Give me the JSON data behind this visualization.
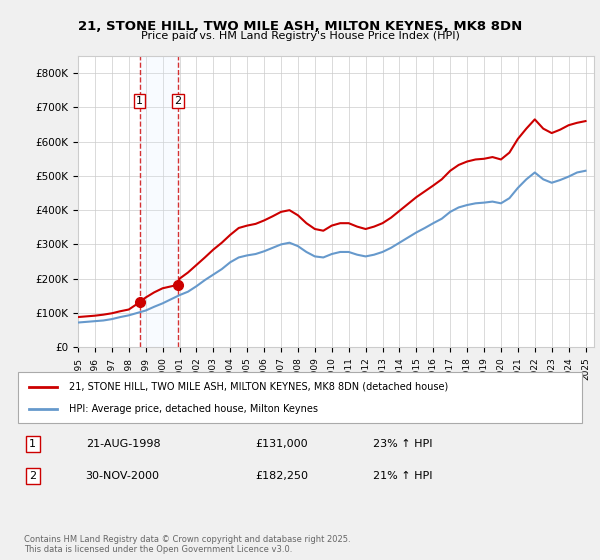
{
  "title": "21, STONE HILL, TWO MILE ASH, MILTON KEYNES, MK8 8DN",
  "subtitle": "Price paid vs. HM Land Registry's House Price Index (HPI)",
  "xlabel": "",
  "ylabel": "",
  "ylim": [
    0,
    850000
  ],
  "yticks": [
    0,
    100000,
    200000,
    300000,
    400000,
    500000,
    600000,
    700000,
    800000
  ],
  "ytick_labels": [
    "£0",
    "£100K",
    "£200K",
    "£300K",
    "£400K",
    "£500K",
    "£600K",
    "£700K",
    "£800K"
  ],
  "bg_color": "#f0f0f0",
  "plot_bg_color": "#ffffff",
  "red_line_color": "#cc0000",
  "blue_line_color": "#6699cc",
  "shade_color": "#ddeeff",
  "marker_color": "#cc0000",
  "legend_label_red": "21, STONE HILL, TWO MILE ASH, MILTON KEYNES, MK8 8DN (detached house)",
  "legend_label_blue": "HPI: Average price, detached house, Milton Keynes",
  "transaction1_label": "1",
  "transaction1_date": "21-AUG-1998",
  "transaction1_price": "£131,000",
  "transaction1_hpi": "23% ↑ HPI",
  "transaction1_year": 1998.64,
  "transaction1_value": 131000,
  "transaction2_label": "2",
  "transaction2_date": "30-NOV-2000",
  "transaction2_price": "£182,250",
  "transaction2_hpi": "21% ↑ HPI",
  "transaction2_year": 2000.92,
  "transaction2_value": 182250,
  "copyright_text": "Contains HM Land Registry data © Crown copyright and database right 2025.\nThis data is licensed under the Open Government Licence v3.0.",
  "hpi_years": [
    1995,
    1995.5,
    1996,
    1996.5,
    1997,
    1997.5,
    1998,
    1998.5,
    1999,
    1999.5,
    2000,
    2000.5,
    2001,
    2001.5,
    2002,
    2002.5,
    2003,
    2003.5,
    2004,
    2004.5,
    2005,
    2005.5,
    2006,
    2006.5,
    2007,
    2007.5,
    2008,
    2008.5,
    2009,
    2009.5,
    2010,
    2010.5,
    2011,
    2011.5,
    2012,
    2012.5,
    2013,
    2013.5,
    2014,
    2014.5,
    2015,
    2015.5,
    2016,
    2016.5,
    2017,
    2017.5,
    2018,
    2018.5,
    2019,
    2019.5,
    2020,
    2020.5,
    2021,
    2021.5,
    2022,
    2022.5,
    2023,
    2023.5,
    2024,
    2024.5,
    2025
  ],
  "hpi_values": [
    72000,
    74000,
    76000,
    78000,
    82000,
    88000,
    93000,
    100000,
    107000,
    118000,
    128000,
    140000,
    152000,
    162000,
    178000,
    196000,
    212000,
    228000,
    248000,
    262000,
    268000,
    272000,
    280000,
    290000,
    300000,
    305000,
    295000,
    278000,
    265000,
    262000,
    272000,
    278000,
    278000,
    270000,
    265000,
    270000,
    278000,
    290000,
    305000,
    320000,
    335000,
    348000,
    362000,
    375000,
    395000,
    408000,
    415000,
    420000,
    422000,
    425000,
    420000,
    435000,
    465000,
    490000,
    510000,
    490000,
    480000,
    488000,
    498000,
    510000,
    515000
  ],
  "red_years": [
    1995,
    1995.5,
    1996,
    1996.5,
    1997,
    1997.5,
    1998,
    1998.64,
    1999,
    1999.5,
    2000,
    2000.92,
    2001,
    2001.5,
    2002,
    2002.5,
    2003,
    2003.5,
    2004,
    2004.5,
    2005,
    2005.5,
    2006,
    2006.5,
    2007,
    2007.5,
    2008,
    2008.5,
    2009,
    2009.5,
    2010,
    2010.5,
    2011,
    2011.5,
    2012,
    2012.5,
    2013,
    2013.5,
    2014,
    2014.5,
    2015,
    2015.5,
    2016,
    2016.5,
    2017,
    2017.5,
    2018,
    2018.5,
    2019,
    2019.5,
    2020,
    2020.5,
    2021,
    2021.5,
    2022,
    2022.5,
    2023,
    2023.5,
    2024,
    2024.5,
    2025
  ],
  "red_values": [
    88000,
    90000,
    92000,
    95000,
    99000,
    105000,
    110000,
    131000,
    145000,
    160000,
    172000,
    182250,
    200000,
    218000,
    240000,
    262000,
    285000,
    305000,
    328000,
    348000,
    355000,
    360000,
    370000,
    382000,
    395000,
    400000,
    385000,
    362000,
    345000,
    340000,
    355000,
    362000,
    362000,
    352000,
    345000,
    352000,
    362000,
    378000,
    398000,
    418000,
    438000,
    455000,
    472000,
    490000,
    515000,
    532000,
    542000,
    548000,
    550000,
    555000,
    548000,
    568000,
    608000,
    638000,
    665000,
    638000,
    625000,
    635000,
    648000,
    655000,
    660000
  ],
  "xmin": 1995,
  "xmax": 2025.5
}
